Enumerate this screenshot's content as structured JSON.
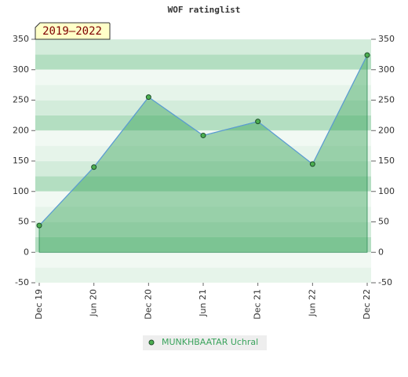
{
  "chart_data": {
    "type": "area",
    "title": "WOF ratinglist",
    "annotation": "2019–2022",
    "categories": [
      "Dec 19",
      "Jun 20",
      "Dec 20",
      "Jun 21",
      "Dec 21",
      "Jun 22",
      "Dec 22"
    ],
    "series": [
      {
        "name": "MUNKHBAATAR Uchral",
        "color": "#3aa35c",
        "line_color": "#5b9bd5",
        "values": [
          44,
          140,
          255,
          192,
          215,
          145,
          324
        ]
      }
    ],
    "ylim": [
      -50,
      350
    ],
    "yticks": [
      -50,
      0,
      50,
      100,
      150,
      200,
      250,
      300,
      350
    ],
    "y2lim": [
      -50,
      350
    ],
    "y2ticks": [
      -50,
      0,
      50,
      100,
      150,
      200,
      250,
      300,
      350
    ],
    "grid": true
  }
}
